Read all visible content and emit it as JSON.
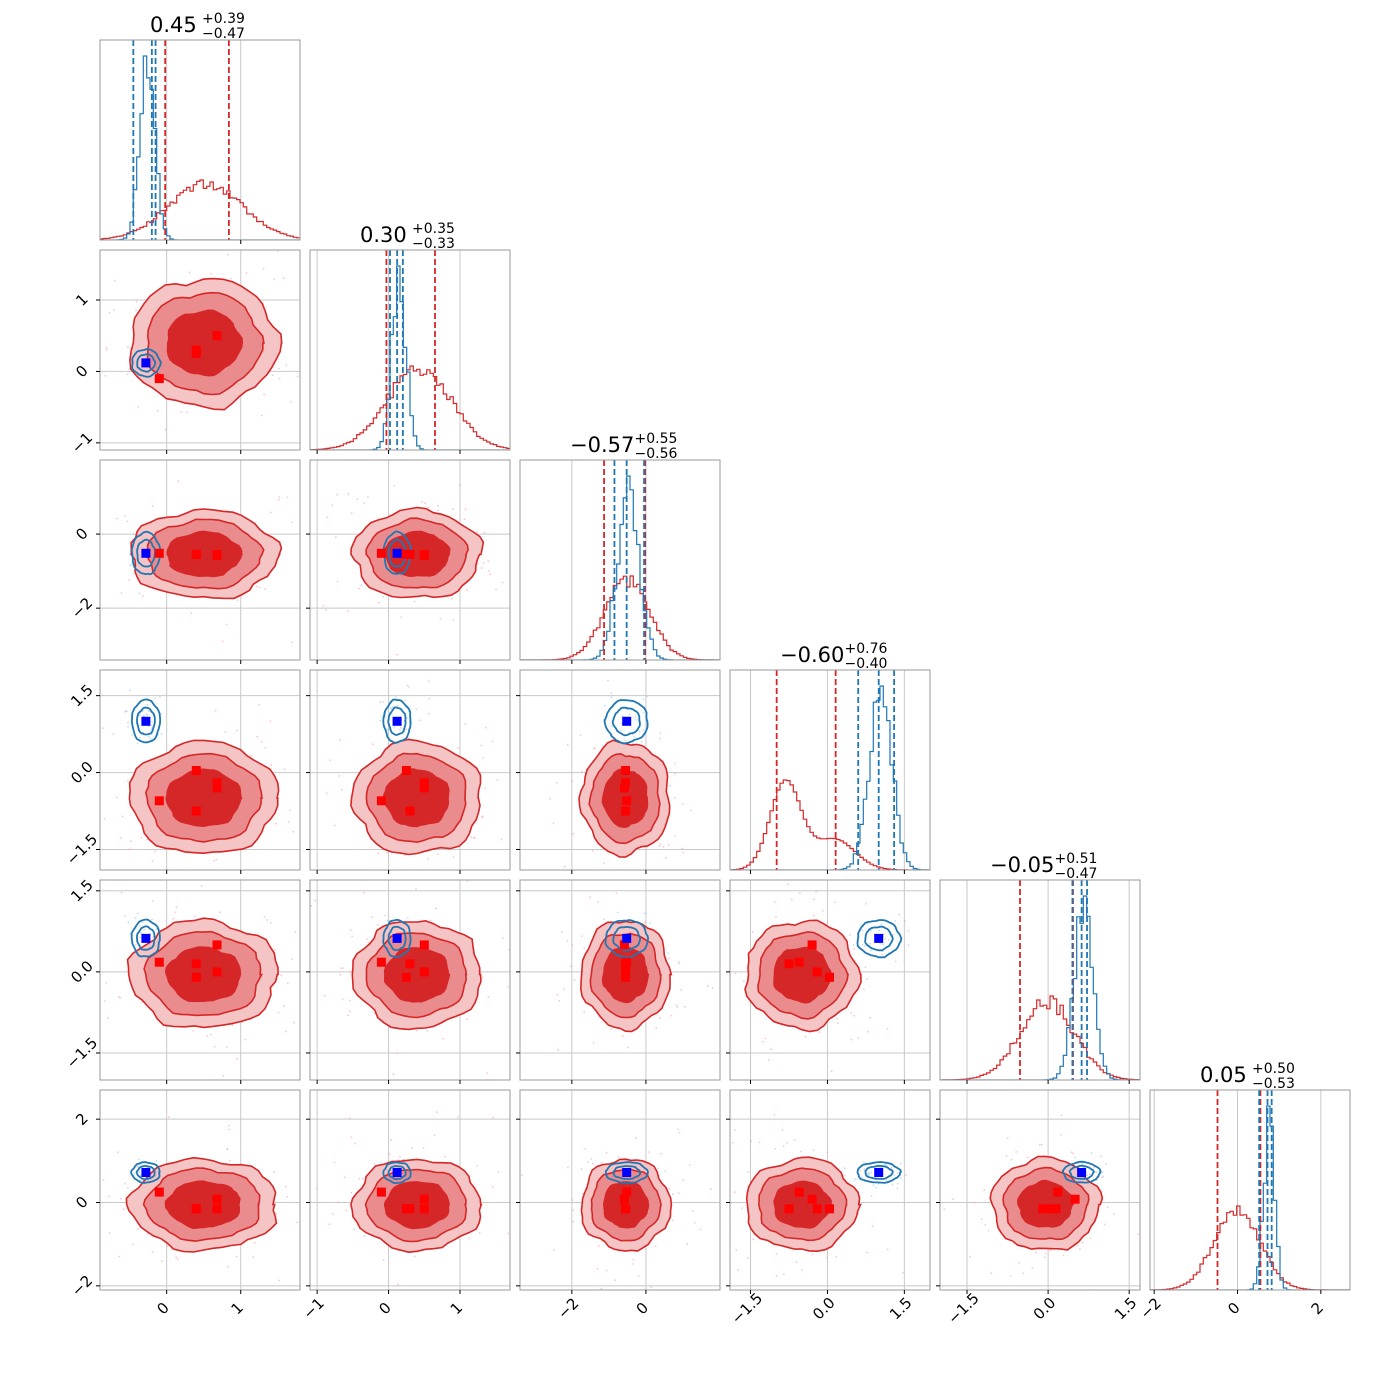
{
  "chart_data": {
    "type": "corner",
    "colors": {
      "red": "#d62728",
      "blue": "#1f77b4",
      "red_marker": "#ff0000",
      "blue_marker": "#0000ff",
      "grid": "#c8c8c8",
      "frame": "#9a9a9a"
    },
    "grid": true,
    "titles": [
      {
        "value": "0.45",
        "plus": "+0.39",
        "minus": "−0.47"
      },
      {
        "value": "0.30",
        "plus": "+0.35",
        "minus": "−0.33"
      },
      {
        "value": "−0.57",
        "plus": "+0.55",
        "minus": "−0.56"
      },
      {
        "value": "−0.60",
        "plus": "+0.76",
        "minus": "−0.40"
      },
      {
        "value": "−0.05",
        "plus": "+0.51",
        "minus": "−0.47"
      },
      {
        "value": "0.05",
        "plus": "+0.50",
        "minus": "−0.53"
      }
    ],
    "params": [
      {
        "range": [
          -0.9,
          1.8
        ],
        "ticks": [
          0,
          1
        ],
        "tick_labels": [
          "0",
          "1"
        ]
      },
      {
        "range": [
          -1.1,
          1.7
        ],
        "ticks": [
          -1,
          0,
          1
        ],
        "tick_labels": [
          "−1",
          "0",
          "1"
        ]
      },
      {
        "range": [
          -3.4,
          2.0
        ],
        "ticks": [
          -2,
          0
        ],
        "tick_labels": [
          "−2",
          "0"
        ]
      },
      {
        "range": [
          -1.9,
          2.0
        ],
        "ticks": [
          -1.5,
          0.0,
          1.5
        ],
        "tick_labels": [
          "−1.5",
          "0.0",
          "1.5"
        ]
      },
      {
        "range": [
          -2.0,
          1.7
        ],
        "ticks": [
          -1.5,
          0.0,
          1.5
        ],
        "tick_labels": [
          "−1.5",
          "0.0",
          "1.5"
        ]
      },
      {
        "range": [
          -2.1,
          2.7
        ],
        "ticks": [
          -2,
          0,
          2
        ],
        "tick_labels": [
          "−2",
          "0",
          "2"
        ]
      }
    ],
    "blue_posterior": {
      "center": [
        -0.28,
        0.12,
        -0.52,
        1.0,
        0.62,
        0.72
      ],
      "sigma": [
        0.1,
        0.1,
        0.3,
        0.22,
        0.18,
        0.13
      ]
    },
    "red_posterior": {
      "center": [
        0.5,
        0.4,
        -0.55,
        -0.5,
        -0.05,
        -0.05
      ],
      "sigma": [
        0.5,
        0.45,
        0.6,
        0.55,
        0.5,
        0.55
      ]
    },
    "hist_quantiles": {
      "red": [
        [
          -0.02,
          0.84
        ],
        [
          -0.03,
          0.65
        ],
        [
          -1.13,
          -0.02
        ],
        [
          -0.99,
          0.16
        ],
        [
          -0.52,
          0.46
        ],
        [
          -0.48,
          0.55
        ]
      ],
      "blue": [
        [
          -0.45,
          -0.2,
          -0.15
        ],
        [
          0.02,
          0.12,
          0.2
        ],
        [
          -0.85,
          -0.52,
          -0.05
        ],
        [
          0.6,
          1.0,
          1.3
        ],
        [
          0.45,
          0.62,
          0.72
        ],
        [
          0.52,
          0.72,
          0.82
        ]
      ]
    },
    "blue_truth": [
      -0.28,
      0.12,
      -0.52,
      1.0,
      0.62,
      0.72
    ],
    "red_markers": [
      [
        -0.1,
        -0.1,
        -0.52,
        -0.55,
        0.18,
        0.25
      ],
      [
        0.4,
        0.25,
        -0.55,
        0.04,
        -0.1,
        -0.15
      ],
      [
        0.4,
        0.3,
        -0.55,
        -0.75,
        0.15,
        -0.15
      ],
      [
        0.68,
        0.5,
        -0.58,
        -0.3,
        0.5,
        0.08
      ],
      [
        0.68,
        0.5,
        -0.55,
        -0.2,
        0.0,
        -0.15
      ]
    ]
  }
}
